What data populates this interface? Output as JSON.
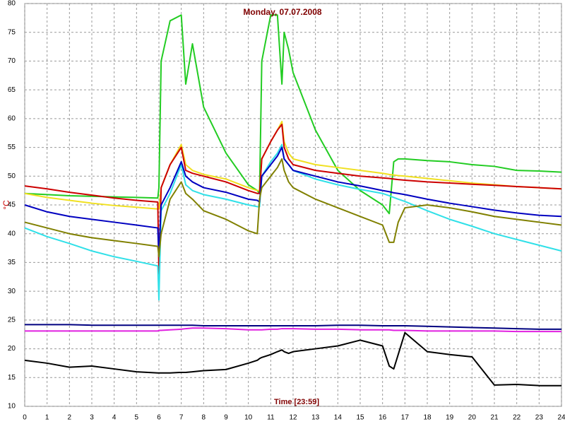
{
  "chart_data": {
    "type": "line",
    "title": "Monday, 07.07.2008",
    "xlabel": "Time [23:59]",
    "ylabel": "°C",
    "x": [
      0,
      1,
      2,
      3,
      4,
      5,
      5.95,
      6.0,
      6.1,
      6.5,
      7.0,
      7.2,
      7.5,
      8,
      9,
      10,
      10.4,
      10.5,
      10.6,
      11,
      11.3,
      11.5,
      11.6,
      11.8,
      12,
      13,
      14,
      15,
      16,
      16.3,
      16.5,
      16.7,
      17,
      18,
      19,
      20,
      21,
      22,
      23,
      24
    ],
    "series": [
      {
        "color": "#22cc22",
        "values": [
          47,
          46.8,
          46.6,
          46.5,
          46.4,
          46.3,
          46.2,
          48,
          70,
          77,
          78,
          66,
          73,
          62,
          54,
          48.5,
          47.5,
          47,
          70,
          78,
          78,
          66,
          75,
          72,
          68,
          58,
          51,
          47.5,
          45,
          43.5,
          52.5,
          53,
          53,
          52.7,
          52.5,
          52,
          51.7,
          51,
          50.9,
          50.7
        ]
      },
      {
        "color": "#f0e020",
        "values": [
          47,
          46.3,
          45.8,
          45.3,
          44.9,
          44.6,
          44.3,
          44.3,
          48,
          52,
          55.5,
          52,
          51,
          50.3,
          49.5,
          48,
          47.5,
          47.5,
          53,
          56,
          58,
          59.5,
          56,
          54,
          53,
          52,
          51.5,
          51,
          50.5,
          50.3,
          50.2,
          50.1,
          50,
          49.6,
          49.2,
          48.8,
          48.5,
          48.2,
          48,
          47.8
        ]
      },
      {
        "color": "#cc0000",
        "values": [
          48.3,
          47.8,
          47.2,
          46.7,
          46.2,
          45.8,
          45.5,
          33,
          48,
          52,
          55,
          51,
          50.5,
          50,
          49,
          47.5,
          47,
          47,
          53,
          56,
          58,
          59,
          55,
          53,
          52,
          51,
          50.5,
          50,
          49.7,
          49.6,
          49.5,
          49.4,
          49.3,
          49,
          48.8,
          48.6,
          48.4,
          48.2,
          48,
          47.8
        ]
      },
      {
        "color": "#30e0e8",
        "values": [
          41,
          39.5,
          38.3,
          37,
          36,
          35.2,
          34.4,
          28.5,
          44,
          47,
          52,
          48.5,
          47.5,
          46.8,
          46,
          45,
          44.7,
          44.7,
          50,
          52.5,
          54,
          55.5,
          53,
          52,
          51,
          49.5,
          48.5,
          47.7,
          47,
          46.6,
          46.3,
          46,
          45.6,
          44,
          42.5,
          41.3,
          40,
          39,
          38,
          37
        ]
      },
      {
        "color": "#0000c0",
        "values": [
          45,
          43.8,
          43,
          42.5,
          42,
          41.5,
          41,
          36,
          45,
          48,
          52.5,
          50,
          49,
          48,
          47.2,
          46,
          45.8,
          45.5,
          50,
          52,
          53.5,
          55,
          53,
          52,
          51,
          50,
          49,
          48.3,
          47.5,
          47.3,
          47.1,
          47,
          46.8,
          46,
          45.3,
          44.7,
          44.1,
          43.6,
          43.2,
          43
        ]
      },
      {
        "color": "#808000",
        "values": [
          42,
          41,
          40,
          39.3,
          38.8,
          38.3,
          37.8,
          36,
          40,
          46,
          49,
          47,
          46,
          44,
          42.5,
          40.5,
          40,
          46,
          48,
          50,
          51.5,
          53,
          51,
          49,
          48,
          46,
          44.5,
          43,
          41.5,
          38.5,
          38.5,
          42,
          44.5,
          45,
          44.5,
          43.8,
          43,
          42.5,
          42,
          41.5
        ]
      },
      {
        "color": "#000080",
        "values": [
          24.2,
          24.2,
          24.2,
          24.1,
          24.1,
          24.1,
          24.1,
          24.1,
          24.1,
          24.1,
          24.1,
          24.1,
          24.1,
          24,
          24,
          24,
          24,
          24,
          24,
          24,
          24,
          24,
          24,
          24,
          24,
          24,
          24.1,
          24.1,
          24,
          24,
          24,
          24,
          24,
          23.9,
          23.8,
          23.7,
          23.6,
          23.5,
          23.4,
          23.4
        ]
      },
      {
        "color": "#e020e0",
        "values": [
          23.1,
          23.1,
          23.1,
          23.1,
          23.1,
          23.1,
          23.1,
          23.2,
          23.2,
          23.3,
          23.4,
          23.5,
          23.6,
          23.6,
          23.5,
          23.3,
          23.3,
          23.3,
          23.3,
          23.4,
          23.4,
          23.5,
          23.5,
          23.5,
          23.5,
          23.4,
          23.4,
          23.3,
          23.3,
          23.3,
          23.2,
          23.2,
          23.2,
          23.1,
          23.1,
          23.1,
          23.1,
          23,
          23,
          23
        ]
      },
      {
        "color": "#000000",
        "values": [
          18,
          17.5,
          16.8,
          17,
          16.5,
          16,
          15.8,
          15.8,
          15.8,
          15.8,
          15.9,
          15.9,
          16,
          16.2,
          16.4,
          17.5,
          18,
          18.3,
          18.5,
          19,
          19.5,
          19.8,
          19.5,
          19.2,
          19.5,
          20,
          20.5,
          21.5,
          20.5,
          17,
          16.5,
          19,
          22.8,
          19.5,
          19,
          18.6,
          13.7,
          13.8,
          13.6,
          13.6
        ]
      }
    ],
    "xlim": [
      0,
      24
    ],
    "xticks": [
      0,
      1,
      2,
      3,
      4,
      5,
      6,
      7,
      8,
      9,
      10,
      11,
      12,
      13,
      14,
      15,
      16,
      17,
      18,
      19,
      20,
      21,
      22,
      23,
      24
    ],
    "ylim": [
      10,
      80
    ],
    "yticks": [
      10,
      15,
      20,
      25,
      30,
      35,
      40,
      45,
      50,
      55,
      60,
      65,
      70,
      75,
      80
    ],
    "grid": true
  }
}
